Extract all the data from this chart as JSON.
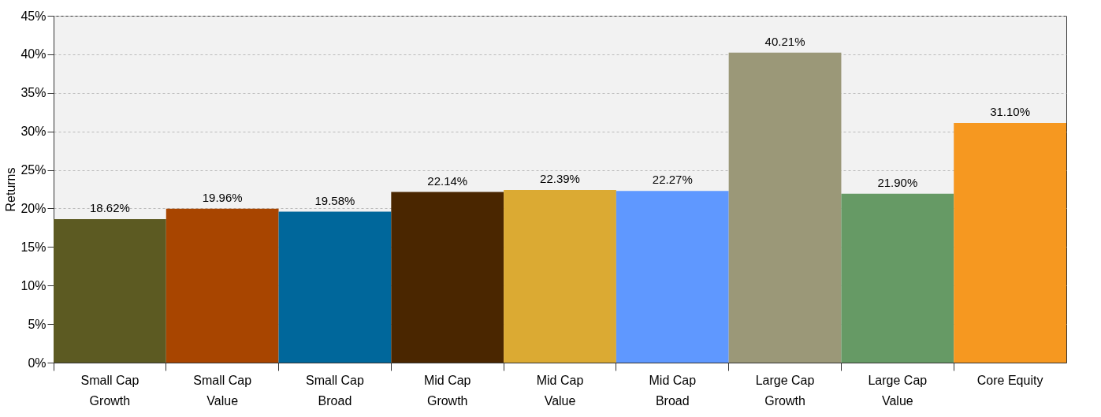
{
  "chart_data": {
    "type": "bar",
    "ylabel": "Returns",
    "categories": [
      "Small Cap\nGrowth",
      "Small Cap\nValue",
      "Small Cap\nBroad",
      "Mid Cap\nGrowth",
      "Mid Cap\nValue",
      "Mid Cap\nBroad",
      "Large Cap\nGrowth",
      "Large Cap\nValue",
      "Core Equity"
    ],
    "values": [
      18.62,
      19.96,
      19.58,
      22.14,
      22.39,
      22.27,
      40.21,
      21.9,
      31.1
    ],
    "value_labels": [
      "18.62%",
      "19.96%",
      "19.58%",
      "22.14%",
      "22.39%",
      "22.27%",
      "40.21%",
      "21.90%",
      "31.10%"
    ],
    "colors": [
      "#5c5a22",
      "#a84500",
      "#00679b",
      "#4a2600",
      "#dbaa33",
      "#5f98ff",
      "#9b9878",
      "#669a65",
      "#f69820"
    ],
    "ylim": [
      0,
      45
    ],
    "yticks": [
      {
        "value": 0,
        "label": "0%"
      },
      {
        "value": 5,
        "label": "5%"
      },
      {
        "value": 10,
        "label": "10%"
      },
      {
        "value": 15,
        "label": "15%"
      },
      {
        "value": 20,
        "label": "20%"
      },
      {
        "value": 25,
        "label": "25%"
      },
      {
        "value": 30,
        "label": "30%"
      },
      {
        "value": 35,
        "label": "35%"
      },
      {
        "value": 40,
        "label": "40%"
      },
      {
        "value": 45,
        "label": "45%"
      }
    ],
    "grid": "y",
    "legend": false
  }
}
